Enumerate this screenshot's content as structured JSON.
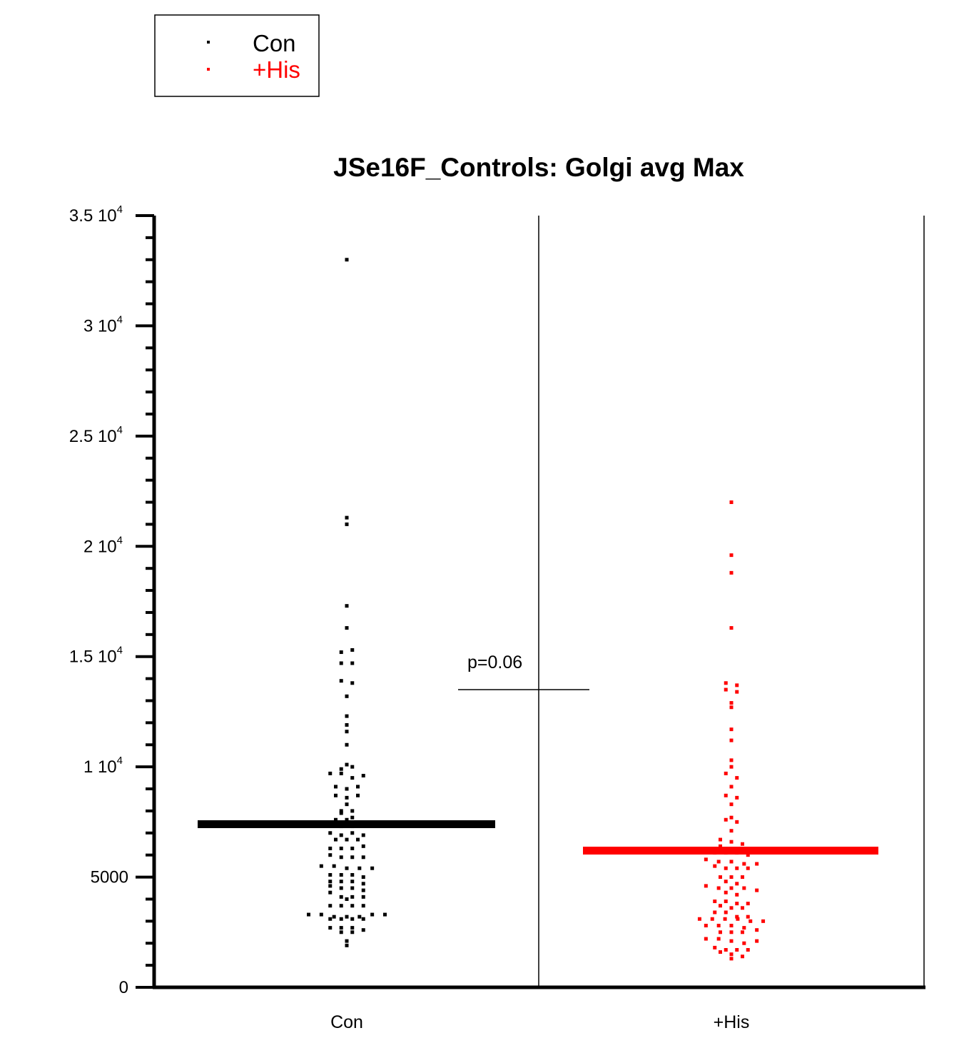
{
  "chart_data": {
    "type": "scatter",
    "subtype": "dot-plot",
    "title": "JSe16F_Controls: Golgi avg Max",
    "xlabel": "",
    "ylabel": "",
    "categories": [
      "Con",
      "+His"
    ],
    "ylim": [
      0,
      35000
    ],
    "y_ticks": [
      {
        "value": 0,
        "mant": "0",
        "exp": ""
      },
      {
        "value": 5000,
        "mant": "5000",
        "exp": ""
      },
      {
        "value": 10000,
        "mant": "1 10",
        "exp": "4"
      },
      {
        "value": 15000,
        "mant": "1.5 10",
        "exp": "4"
      },
      {
        "value": 20000,
        "mant": "2 10",
        "exp": "4"
      },
      {
        "value": 25000,
        "mant": "2.5 10",
        "exp": "4"
      },
      {
        "value": 30000,
        "mant": "3 10",
        "exp": "4"
      },
      {
        "value": 35000,
        "mant": "3.5 10",
        "exp": "4"
      }
    ],
    "legend": {
      "position": "top-left",
      "boxed": true
    },
    "grid": false,
    "series": [
      {
        "name": "Con",
        "color": "#000000",
        "mean": 7400,
        "values": [
          33000,
          21300,
          21000,
          17300,
          16300,
          15200,
          15300,
          14700,
          14700,
          13900,
          13800,
          13200,
          12300,
          11900,
          11600,
          11000,
          10100,
          9900,
          10000,
          9700,
          9700,
          9500,
          9600,
          9100,
          9000,
          9100,
          8700,
          8600,
          8700,
          8300,
          8000,
          8000,
          7900,
          7600,
          7700,
          7600,
          7300,
          7300,
          7400,
          7000,
          6900,
          7000,
          6900,
          6700,
          6700,
          6700,
          6300,
          6300,
          6300,
          6400,
          6000,
          5900,
          5900,
          5900,
          5500,
          5500,
          5400,
          5400,
          5400,
          5100,
          5100,
          5100,
          5000,
          4800,
          4800,
          4800,
          4700,
          4600,
          4500,
          4500,
          4400,
          4300,
          4100,
          4100,
          4100,
          4000,
          3700,
          3700,
          3700,
          3700,
          3300,
          3300,
          3200,
          3100,
          3200,
          3100,
          3200,
          3100,
          3300,
          3300,
          3100,
          2700,
          2700,
          2700,
          2600,
          2500,
          2500,
          2100,
          1900
        ]
      },
      {
        "name": "+His",
        "color": "#ff0000",
        "mean": 6200,
        "values": [
          22000,
          19600,
          18800,
          16300,
          13800,
          13700,
          13500,
          13400,
          12900,
          12700,
          11700,
          11200,
          10300,
          10000,
          9700,
          9500,
          9100,
          8700,
          8600,
          8300,
          7700,
          7600,
          7500,
          7100,
          6700,
          6600,
          6500,
          6400,
          6200,
          6100,
          6100,
          6100,
          6200,
          6000,
          5800,
          5700,
          5700,
          5600,
          5600,
          5500,
          5400,
          5400,
          5400,
          5000,
          5000,
          5000,
          4800,
          4700,
          4600,
          4500,
          4500,
          4500,
          4400,
          4300,
          4200,
          3900,
          3900,
          3800,
          3800,
          3700,
          3600,
          3600,
          3400,
          3400,
          3200,
          3100,
          3100,
          3100,
          3100,
          3000,
          3000,
          3200,
          2800,
          2800,
          2800,
          2700,
          2600,
          2500,
          2500,
          2500,
          2200,
          2200,
          2100,
          2000,
          2100,
          1800,
          1700,
          1700,
          1700,
          1600,
          1500,
          1400,
          1300
        ]
      }
    ],
    "annotations": [
      {
        "text": "p=0.06",
        "y": 13500
      }
    ]
  }
}
